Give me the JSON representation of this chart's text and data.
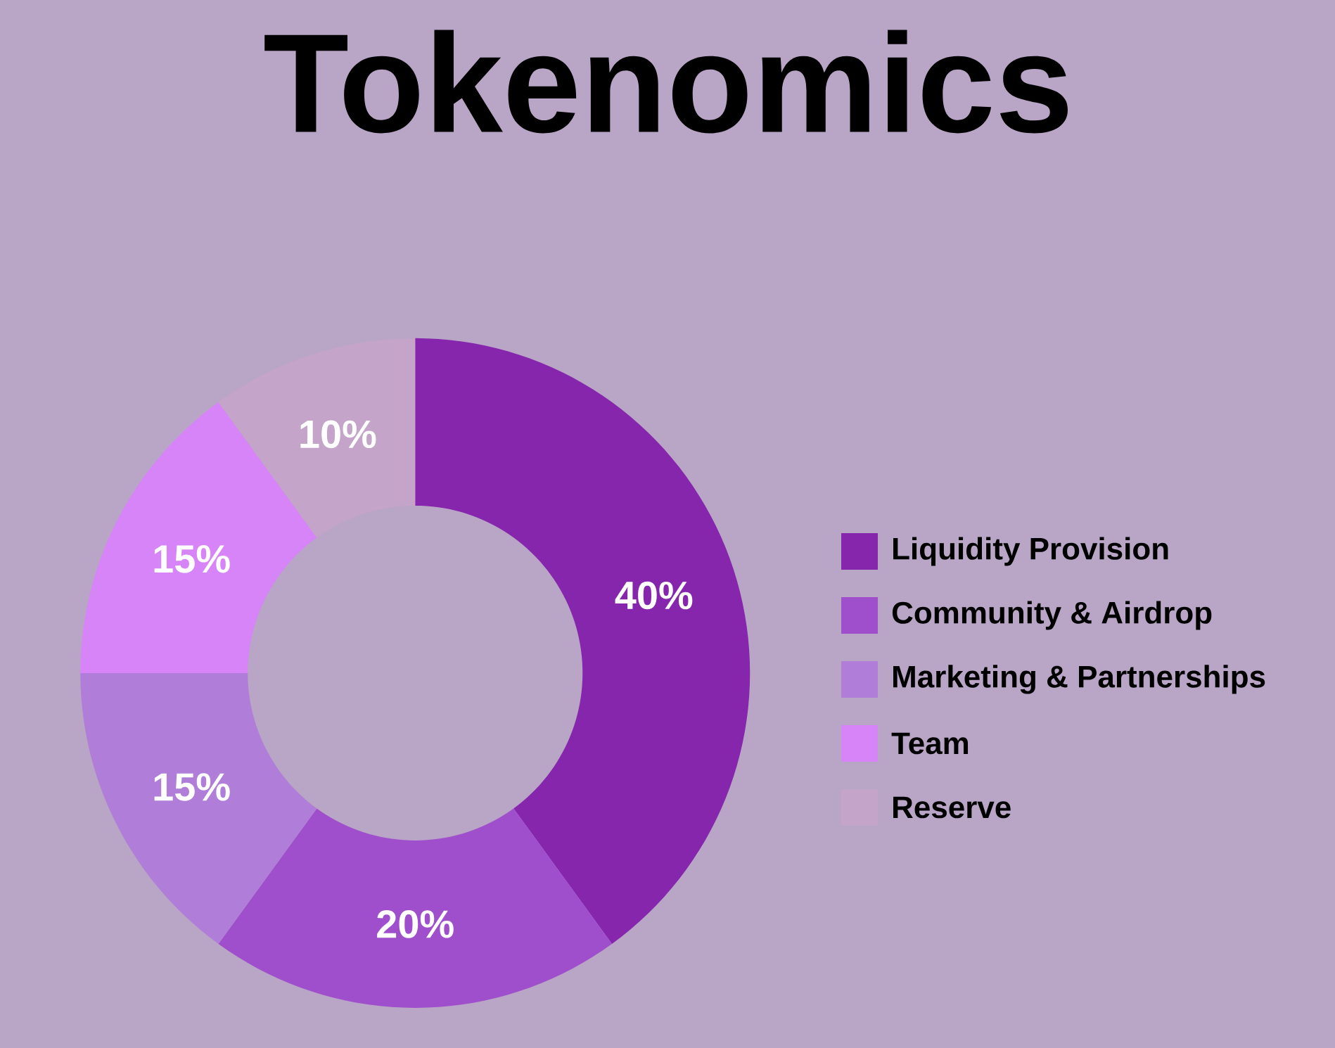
{
  "chart_data": {
    "type": "donut",
    "title": "Tokenomics",
    "categories": [
      "Liquidity Provision",
      "Community & Airdrop",
      "Marketing & Partnerships",
      "Team",
      "Reserve"
    ],
    "values": [
      40,
      20,
      15,
      15,
      10
    ],
    "value_labels": [
      "40%",
      "20%",
      "15%",
      "15%",
      "10%"
    ],
    "colors": [
      "#8626ad",
      "#a04fcc",
      "#b07ed8",
      "#d684f8",
      "#c4a4c8"
    ],
    "legend": "right"
  }
}
